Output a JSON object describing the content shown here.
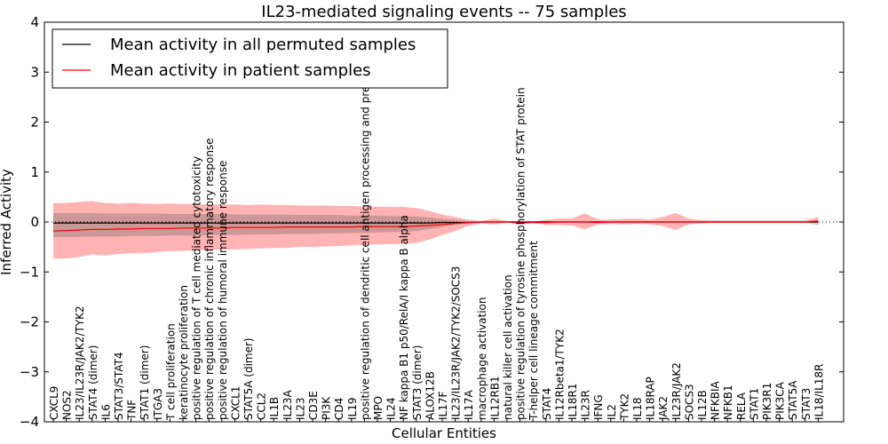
{
  "chart_data": {
    "type": "line",
    "title": "IL23-mediated signaling events -- 75 samples",
    "xlabel": "Cellular Entities",
    "ylabel": "Inferred Activity",
    "ylim": [
      -4,
      4
    ],
    "yticks": [
      "4",
      "3",
      "2",
      "1",
      "0",
      "−1",
      "−2",
      "−3",
      "−4"
    ],
    "ytick_values": [
      4,
      3,
      2,
      1,
      0,
      -1,
      -2,
      -3,
      -4
    ],
    "legend": {
      "placement": "top-left",
      "entries": [
        {
          "label": "Mean activity in all permuted samples",
          "color": "#000000"
        },
        {
          "label": "Mean activity in patient samples",
          "color": "#ff0000"
        }
      ]
    },
    "categories": [
      "CXCL9",
      "NOS2",
      "IL23/IL23R/JAK2/TYK2",
      "STAT4 (dimer)",
      "IL6",
      "STAT3/STAT4",
      "TNF",
      "STAT1 (dimer)",
      "ITGA3",
      "T cell proliferation",
      "keratinocyte proliferation",
      "positive regulation of T cell mediated cytotoxicity",
      "positive regulation of chronic inflammatory response",
      "positive regulation of humoral immune response",
      "CXCL1",
      "STAT5A (dimer)",
      "CCL2",
      "IL1B",
      "IL23A",
      "IL23",
      "CD3E",
      "PI3K",
      "CD4",
      "IL19",
      "positive regulation of dendritic cell antigen processing and presentation",
      "MPO",
      "IL24",
      "NF kappa B1 p50/RelA/I kappa B alpha",
      "STAT3 (dimer)",
      "ALOX12B",
      "IL17F",
      "IL23/IL23R/JAK2/TYK2/SOCS3",
      "IL17A",
      "macrophage activation",
      "IL12RB1",
      "natural killer cell activation",
      "positive regulation of tyrosine phosphorylation of STAT protein",
      "T-helper cell lineage commitment",
      "STAT4",
      "IL12Rbeta1/TYK2",
      "IL18R1",
      "IL23R",
      "IFNG",
      "IL2",
      "TYK2",
      "IL18",
      "IL18RAP",
      "JAK2",
      "IL23R/JAK2",
      "SOCS3",
      "IL12B",
      "NFKBIA",
      "NFKB1",
      "RELA",
      "STAT1",
      "PIK3R1",
      "PIK3CA",
      "STAT5A",
      "STAT3",
      "IL18/IL18R"
    ],
    "series": [
      {
        "name": "Mean activity in patient samples",
        "color": "#ff0000",
        "values": [
          -0.18,
          -0.17,
          -0.16,
          -0.15,
          -0.15,
          -0.14,
          -0.14,
          -0.13,
          -0.13,
          -0.13,
          -0.12,
          -0.12,
          -0.12,
          -0.12,
          -0.11,
          -0.11,
          -0.11,
          -0.11,
          -0.1,
          -0.1,
          -0.1,
          -0.1,
          -0.1,
          -0.1,
          -0.09,
          -0.09,
          -0.09,
          -0.09,
          -0.08,
          -0.07,
          -0.05,
          -0.03,
          -0.01,
          0.0,
          0.0,
          0.0,
          -0.02,
          -0.01,
          -0.01,
          0.0,
          0.0,
          0.0,
          -0.01,
          0.0,
          0.0,
          0.0,
          0.0,
          0.0,
          0.0,
          0.0,
          0.0,
          0.0,
          0.0,
          0.0,
          0.0,
          0.0,
          0.0,
          0.0,
          0.0,
          0.02
        ]
      },
      {
        "name": "Mean activity in all permuted samples",
        "color": "#000000",
        "values": [
          -0.02,
          -0.02,
          -0.02,
          -0.02,
          -0.02,
          -0.02,
          -0.02,
          -0.02,
          -0.02,
          -0.02,
          -0.02,
          -0.02,
          -0.02,
          -0.02,
          -0.02,
          -0.02,
          -0.02,
          -0.02,
          -0.02,
          -0.02,
          -0.02,
          -0.02,
          -0.02,
          -0.02,
          -0.02,
          -0.02,
          -0.02,
          -0.02,
          -0.02,
          -0.02,
          -0.01,
          -0.01,
          -0.01,
          0.0,
          0.0,
          0.0,
          0.0,
          0.0,
          0.0,
          0.0,
          0.0,
          0.0,
          0.0,
          0.0,
          0.0,
          0.0,
          0.0,
          0.0,
          0.0,
          0.0,
          0.0,
          0.0,
          0.0,
          0.0,
          0.0,
          0.0,
          0.0,
          0.0,
          0.0,
          0.0
        ]
      }
    ],
    "bands": [
      {
        "name": "patient range",
        "color": "#ff9999",
        "upper": [
          0.38,
          0.38,
          0.4,
          0.42,
          0.38,
          0.37,
          0.38,
          0.37,
          0.36,
          0.37,
          0.36,
          0.36,
          0.35,
          0.35,
          0.35,
          0.34,
          0.35,
          0.34,
          0.34,
          0.33,
          0.33,
          0.33,
          0.32,
          0.32,
          0.31,
          0.31,
          0.3,
          0.3,
          0.28,
          0.22,
          0.15,
          0.1,
          0.05,
          0.02,
          0.07,
          0.02,
          0.0,
          0.0,
          0.05,
          0.07,
          0.07,
          0.17,
          0.05,
          0.05,
          0.06,
          0.07,
          0.05,
          0.1,
          0.18,
          0.07,
          0.04,
          0.03,
          0.03,
          0.03,
          0.03,
          0.03,
          0.03,
          0.03,
          0.03,
          0.1
        ],
        "lower": [
          -0.73,
          -0.73,
          -0.7,
          -0.65,
          -0.67,
          -0.64,
          -0.62,
          -0.63,
          -0.6,
          -0.58,
          -0.58,
          -0.56,
          -0.56,
          -0.55,
          -0.55,
          -0.54,
          -0.53,
          -0.52,
          -0.52,
          -0.5,
          -0.5,
          -0.49,
          -0.48,
          -0.47,
          -0.46,
          -0.45,
          -0.44,
          -0.44,
          -0.42,
          -0.35,
          -0.26,
          -0.18,
          -0.08,
          -0.03,
          -0.05,
          -0.02,
          -0.03,
          -0.02,
          -0.06,
          -0.06,
          -0.07,
          -0.15,
          -0.05,
          -0.04,
          -0.05,
          -0.04,
          -0.05,
          -0.08,
          -0.16,
          -0.05,
          -0.03,
          -0.02,
          -0.02,
          -0.02,
          -0.02,
          -0.02,
          -0.02,
          -0.02,
          -0.02,
          -0.06
        ]
      },
      {
        "name": "permuted range",
        "color": "#555555",
        "upper": [
          0.18,
          0.18,
          0.18,
          0.18,
          0.17,
          0.17,
          0.17,
          0.17,
          0.17,
          0.16,
          0.16,
          0.16,
          0.16,
          0.16,
          0.15,
          0.15,
          0.15,
          0.15,
          0.15,
          0.14,
          0.14,
          0.14,
          0.14,
          0.13,
          0.13,
          0.13,
          0.12,
          0.12,
          0.11,
          0.09,
          0.06,
          0.04,
          0.02,
          0.01,
          0.01,
          0.01,
          0.01,
          0.01,
          0.01,
          0.01,
          0.01,
          0.01,
          0.01,
          0.01,
          0.01,
          0.01,
          0.01,
          0.01,
          0.01,
          0.01,
          0.01,
          0.01,
          0.01,
          0.01,
          0.01,
          0.01,
          0.01,
          0.01,
          0.01,
          0.01
        ],
        "lower": [
          -0.3,
          -0.3,
          -0.3,
          -0.29,
          -0.29,
          -0.29,
          -0.28,
          -0.28,
          -0.28,
          -0.27,
          -0.27,
          -0.27,
          -0.26,
          -0.26,
          -0.26,
          -0.25,
          -0.25,
          -0.25,
          -0.24,
          -0.24,
          -0.24,
          -0.23,
          -0.23,
          -0.22,
          -0.22,
          -0.21,
          -0.2,
          -0.2,
          -0.18,
          -0.14,
          -0.1,
          -0.06,
          -0.03,
          -0.01,
          -0.01,
          -0.01,
          -0.01,
          -0.01,
          -0.01,
          -0.01,
          -0.01,
          -0.01,
          -0.01,
          -0.01,
          -0.01,
          -0.01,
          -0.01,
          -0.01,
          -0.01,
          -0.01,
          -0.01,
          -0.01,
          -0.01,
          -0.01,
          -0.01,
          -0.01,
          -0.01,
          -0.01,
          -0.01,
          -0.01
        ]
      }
    ]
  }
}
